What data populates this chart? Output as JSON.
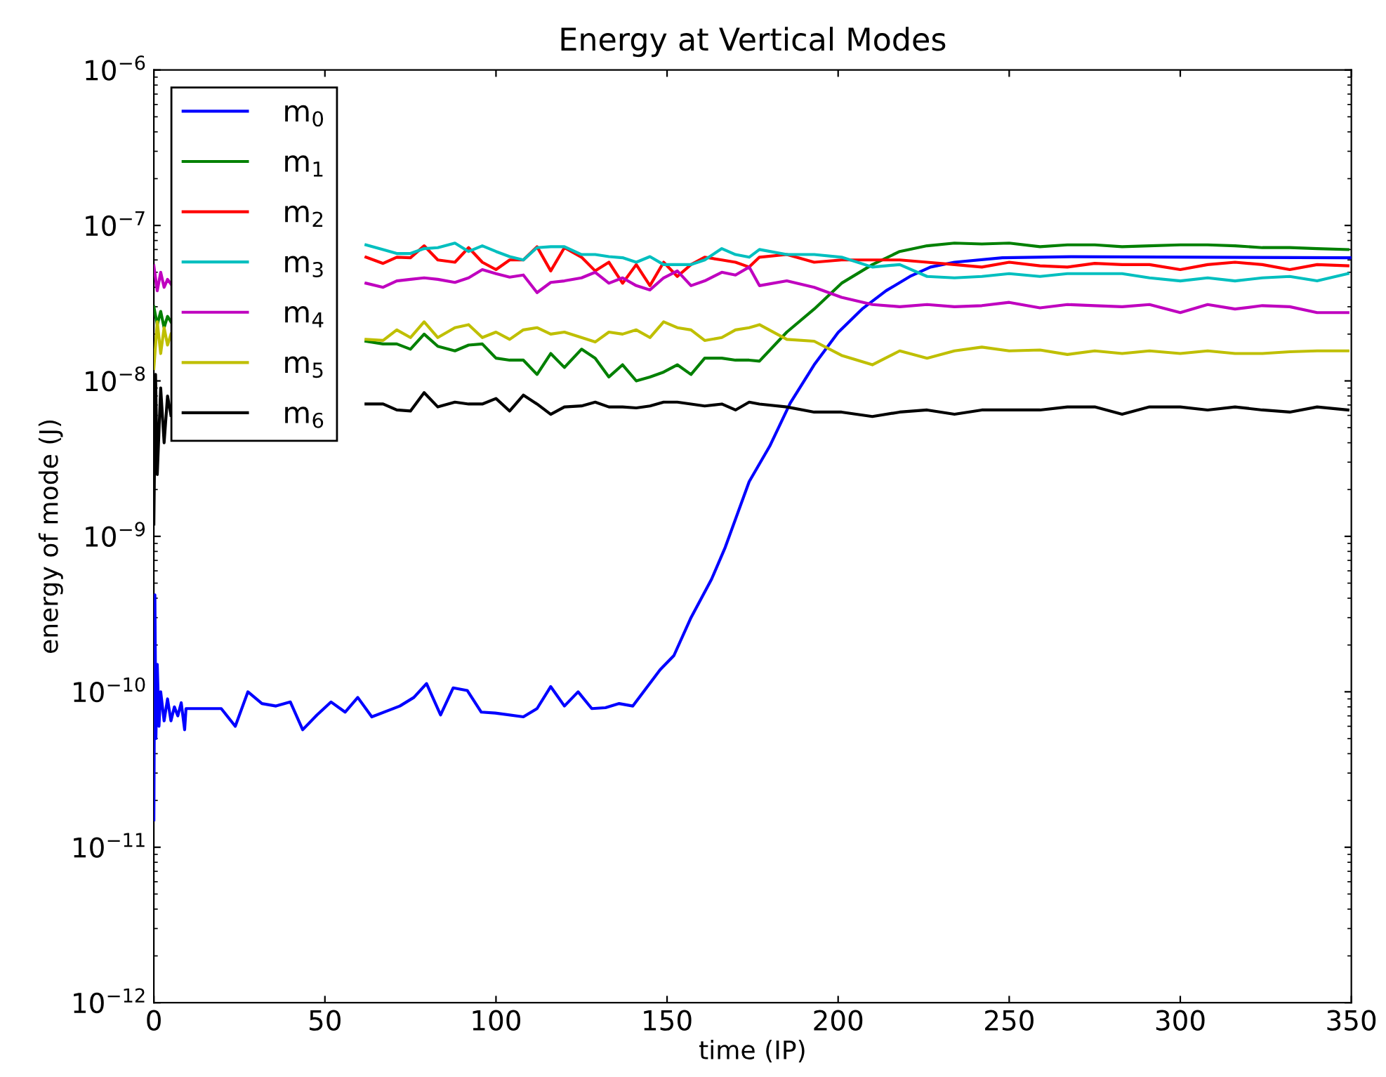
{
  "chart_data": {
    "type": "line",
    "title": "Energy at Vertical Modes",
    "xlabel": "time (IP)",
    "ylabel": "energy of mode (J)",
    "log": "y",
    "xlim": [
      0,
      350
    ],
    "xticks": [
      0,
      50,
      100,
      150,
      200,
      250,
      300,
      350
    ],
    "ylim": [
      1e-12,
      1e-06
    ],
    "yticks": [
      {
        "value": 1e-12,
        "label": "10$^{−12}$"
      },
      {
        "value": 1e-11,
        "label": "10$^{−11}$"
      },
      {
        "value": 1e-10,
        "label": "10$^{−10}$"
      },
      {
        "value": 1e-09,
        "label": "10$^{−9}$"
      },
      {
        "value": 1e-08,
        "label": "10$^{−8}$"
      },
      {
        "value": 1e-07,
        "label": "10$^{−7}$"
      },
      {
        "value": 1e-06,
        "label": "10$^{−6}$"
      }
    ],
    "grid": false,
    "legend": "top left",
    "marker": "none",
    "line_style": "solid",
    "series": [
      {
        "name": "m$_{0}$",
        "color": "#0000ff",
        "x": [
          0,
          0.3,
          0.6,
          1,
          1.5,
          2,
          3,
          4,
          5,
          6,
          7,
          8,
          9,
          9.4,
          19.7,
          23.8,
          27.5,
          31.6,
          35.7,
          39.9,
          43.5,
          47.7,
          51.8,
          55.9,
          59.6,
          63.7,
          71.9,
          76,
          79.7,
          83.8,
          87.5,
          91.6,
          95.7,
          99.8,
          108,
          112,
          116,
          120,
          124,
          128,
          132,
          136,
          140,
          148,
          152,
          157,
          163,
          167,
          174,
          180,
          186,
          193,
          200,
          207,
          214,
          221,
          227,
          234,
          248,
          268,
          348,
          350
        ],
        "values": [
          1.5e-11,
          4.2e-10,
          5e-11,
          1.5e-10,
          6e-11,
          1e-10,
          6.5e-11,
          9e-11,
          6.5e-11,
          8e-11,
          7e-11,
          8.5e-11,
          5.7e-11,
          7.8e-11,
          7.8e-11,
          6e-11,
          1e-10,
          8.4e-11,
          8.1e-11,
          8.6e-11,
          5.7e-11,
          7.1e-11,
          8.6e-11,
          7.4e-11,
          9.2e-11,
          6.9e-11,
          8.1e-11,
          9.2e-11,
          1.13e-10,
          7.1e-11,
          1.06e-10,
          1.02e-10,
          7.4e-11,
          7.3e-11,
          6.9e-11,
          7.8e-11,
          1.08e-10,
          8.1e-11,
          1e-10,
          7.8e-11,
          7.9e-11,
          8.4e-11,
          8.1e-11,
          1.39e-10,
          1.71e-10,
          3e-10,
          5.3e-10,
          8.5e-10,
          2.25e-09,
          3.8e-09,
          7.2e-09,
          1.27e-08,
          2.05e-08,
          2.9e-08,
          3.8e-08,
          4.7e-08,
          5.4e-08,
          5.8e-08,
          6.2e-08,
          6.3e-08,
          6.2e-08,
          6.2e-08
        ]
      },
      {
        "name": "m$_{1}$",
        "color": "#008000",
        "x": [
          0,
          1,
          2,
          3,
          4,
          5,
          30,
          62,
          67,
          71,
          75,
          79,
          83,
          88,
          92,
          96,
          100,
          104,
          108,
          112,
          116,
          120,
          125,
          129,
          133,
          137,
          141,
          145,
          149,
          153,
          157,
          161,
          166,
          170,
          174,
          177,
          185,
          193,
          201,
          210,
          218,
          226,
          234,
          242,
          250,
          259,
          267,
          275,
          283,
          291,
          300,
          308,
          316,
          324,
          332,
          340,
          349
        ],
        "values": [
          3e-08,
          2.3e-08,
          2.8e-08,
          2.2e-08,
          2.6e-08,
          2.4e-08,
          null,
          1.8e-08,
          1.73e-08,
          1.73e-08,
          1.6e-08,
          2e-08,
          1.67e-08,
          1.56e-08,
          1.7e-08,
          1.73e-08,
          1.4e-08,
          1.36e-08,
          1.36e-08,
          1.1e-08,
          1.5e-08,
          1.22e-08,
          1.6e-08,
          1.4e-08,
          1.06e-08,
          1.27e-08,
          1e-08,
          1.06e-08,
          1.14e-08,
          1.27e-08,
          1.1e-08,
          1.4e-08,
          1.4e-08,
          1.36e-08,
          1.36e-08,
          1.34e-08,
          2.06e-08,
          2.9e-08,
          4.25e-08,
          5.6e-08,
          6.8e-08,
          7.4e-08,
          7.7e-08,
          7.6e-08,
          7.7e-08,
          7.3e-08,
          7.5e-08,
          7.5e-08,
          7.3e-08,
          7.4e-08,
          7.5e-08,
          7.5e-08,
          7.4e-08,
          7.2e-08,
          7.2e-08,
          7.1e-08,
          7e-08
        ]
      },
      {
        "name": "m$_{2}$",
        "color": "#ff0000",
        "x": [
          62,
          67,
          71,
          75,
          79,
          83,
          88,
          92,
          96,
          100,
          104,
          108,
          112,
          116,
          120,
          125,
          129,
          133,
          137,
          141,
          145,
          149,
          153,
          157,
          161,
          166,
          170,
          174,
          177,
          185,
          193,
          201,
          210,
          218,
          226,
          234,
          242,
          250,
          259,
          267,
          275,
          283,
          291,
          300,
          308,
          316,
          324,
          332,
          340,
          349
        ],
        "values": [
          6.25e-08,
          5.7e-08,
          6.25e-08,
          6.2e-08,
          7.4e-08,
          6e-08,
          5.8e-08,
          7.2e-08,
          5.8e-08,
          5.2e-08,
          6e-08,
          6e-08,
          7.3e-08,
          5.1e-08,
          7.2e-08,
          6.25e-08,
          5.1e-08,
          5.8e-08,
          4.25e-08,
          5.6e-08,
          4.1e-08,
          5.8e-08,
          4.7e-08,
          5.6e-08,
          6.25e-08,
          6e-08,
          5.8e-08,
          5.4e-08,
          6.25e-08,
          6.5e-08,
          5.8e-08,
          6e-08,
          6e-08,
          6e-08,
          5.8e-08,
          5.6e-08,
          5.4e-08,
          5.8e-08,
          5.5e-08,
          5.4e-08,
          5.7e-08,
          5.6e-08,
          5.6e-08,
          5.2e-08,
          5.6e-08,
          5.8e-08,
          5.6e-08,
          5.2e-08,
          5.6e-08,
          5.5e-08
        ]
      },
      {
        "name": "m$_{3}$",
        "color": "#00bfbf",
        "x": [
          62,
          67,
          71,
          75,
          79,
          83,
          88,
          92,
          96,
          100,
          104,
          108,
          112,
          116,
          120,
          125,
          129,
          133,
          137,
          141,
          145,
          149,
          153,
          157,
          161,
          166,
          170,
          174,
          177,
          185,
          193,
          201,
          210,
          218,
          226,
          234,
          242,
          250,
          259,
          267,
          275,
          283,
          291,
          300,
          308,
          316,
          324,
          332,
          340,
          349
        ],
        "values": [
          7.5e-08,
          7e-08,
          6.6e-08,
          6.6e-08,
          7.1e-08,
          7.2e-08,
          7.7e-08,
          6.8e-08,
          7.4e-08,
          6.8e-08,
          6.3e-08,
          6e-08,
          7.2e-08,
          7.3e-08,
          7.3e-08,
          6.5e-08,
          6.5e-08,
          6.3e-08,
          6.2e-08,
          5.8e-08,
          6.3e-08,
          5.6e-08,
          5.6e-08,
          5.6e-08,
          6e-08,
          7.1e-08,
          6.5e-08,
          6.25e-08,
          7e-08,
          6.5e-08,
          6.5e-08,
          6.25e-08,
          5.4e-08,
          5.6e-08,
          4.7e-08,
          4.6e-08,
          4.7e-08,
          4.9e-08,
          4.7e-08,
          4.9e-08,
          4.9e-08,
          4.9e-08,
          4.6e-08,
          4.4e-08,
          4.6e-08,
          4.4e-08,
          4.6e-08,
          4.7e-08,
          4.4e-08,
          4.9e-08
        ]
      },
      {
        "name": "m$_{4}$",
        "color": "#bf00bf",
        "x": [
          0,
          1,
          2,
          3,
          4,
          5,
          30,
          62,
          67,
          71,
          75,
          79,
          83,
          88,
          92,
          96,
          100,
          104,
          108,
          112,
          116,
          120,
          125,
          129,
          133,
          137,
          141,
          145,
          149,
          153,
          157,
          161,
          166,
          170,
          174,
          177,
          185,
          193,
          201,
          210,
          218,
          226,
          234,
          242,
          250,
          259,
          267,
          275,
          283,
          291,
          300,
          308,
          316,
          324,
          332,
          340,
          349
        ],
        "values": [
          5.5e-08,
          3.8e-08,
          5e-08,
          4e-08,
          4.5e-08,
          4.2e-08,
          null,
          4.25e-08,
          4e-08,
          4.4e-08,
          4.5e-08,
          4.6e-08,
          4.5e-08,
          4.3e-08,
          4.6e-08,
          5.2e-08,
          4.9e-08,
          4.65e-08,
          4.8e-08,
          3.7e-08,
          4.3e-08,
          4.4e-08,
          4.6e-08,
          5e-08,
          4.25e-08,
          4.6e-08,
          4.1e-08,
          3.85e-08,
          4.6e-08,
          5.1e-08,
          4.1e-08,
          4.4e-08,
          5e-08,
          4.8e-08,
          5.4e-08,
          4.1e-08,
          4.4e-08,
          4e-08,
          3.45e-08,
          3.1e-08,
          3e-08,
          3.1e-08,
          3e-08,
          3.05e-08,
          3.2e-08,
          2.95e-08,
          3.1e-08,
          3.05e-08,
          3e-08,
          3.1e-08,
          2.75e-08,
          3.1e-08,
          2.9e-08,
          3.05e-08,
          3e-08,
          2.75e-08,
          2.75e-08
        ]
      },
      {
        "name": "m$_{5}$",
        "color": "#bfbf00",
        "x": [
          0,
          1,
          2,
          3,
          4,
          5,
          30,
          62,
          67,
          71,
          75,
          79,
          83,
          88,
          92,
          96,
          100,
          104,
          108,
          112,
          116,
          120,
          125,
          129,
          133,
          137,
          141,
          145,
          149,
          153,
          157,
          161,
          166,
          170,
          174,
          177,
          185,
          193,
          201,
          210,
          218,
          226,
          234,
          242,
          250,
          259,
          267,
          275,
          283,
          291,
          300,
          308,
          316,
          324,
          332,
          340,
          349
        ],
        "values": [
          1.2e-08,
          2.4e-08,
          1.5e-08,
          2.2e-08,
          1.7e-08,
          2e-08,
          null,
          1.85e-08,
          1.82e-08,
          2.13e-08,
          1.9e-08,
          2.4e-08,
          1.9e-08,
          2.2e-08,
          2.3e-08,
          1.9e-08,
          2.06e-08,
          1.85e-08,
          2.13e-08,
          2.2e-08,
          2e-08,
          2.06e-08,
          1.9e-08,
          1.78e-08,
          2.06e-08,
          2e-08,
          2.13e-08,
          1.9e-08,
          2.4e-08,
          2.2e-08,
          2.13e-08,
          1.82e-08,
          1.9e-08,
          2.13e-08,
          2.2e-08,
          2.3e-08,
          1.85e-08,
          1.8e-08,
          1.46e-08,
          1.27e-08,
          1.56e-08,
          1.4e-08,
          1.56e-08,
          1.65e-08,
          1.56e-08,
          1.58e-08,
          1.48e-08,
          1.56e-08,
          1.5e-08,
          1.56e-08,
          1.5e-08,
          1.56e-08,
          1.5e-08,
          1.5e-08,
          1.54e-08,
          1.56e-08,
          1.56e-08
        ]
      },
      {
        "name": "m$_{6}$",
        "color": "#000000",
        "x": [
          0,
          0.5,
          1,
          2,
          3,
          4,
          5,
          30,
          62,
          67,
          71,
          75,
          79,
          83,
          88,
          92,
          96,
          100,
          104,
          108,
          112,
          116,
          120,
          125,
          129,
          133,
          137,
          141,
          145,
          149,
          153,
          157,
          161,
          166,
          170,
          174,
          177,
          185,
          193,
          201,
          210,
          218,
          226,
          234,
          242,
          250,
          259,
          267,
          275,
          283,
          291,
          300,
          308,
          316,
          324,
          332,
          340,
          349
        ],
        "values": [
          1.2e-09,
          1.1e-08,
          2.5e-09,
          9e-09,
          4e-09,
          8e-09,
          6e-09,
          null,
          7.1e-09,
          7.1e-09,
          6.5e-09,
          6.4e-09,
          8.4e-09,
          6.8e-09,
          7.3e-09,
          7.1e-09,
          7.1e-09,
          7.7e-09,
          6.4e-09,
          8.1e-09,
          7.1e-09,
          6.1e-09,
          6.8e-09,
          6.9e-09,
          7.3e-09,
          6.8e-09,
          6.8e-09,
          6.7e-09,
          6.9e-09,
          7.3e-09,
          7.3e-09,
          7.1e-09,
          6.9e-09,
          7.1e-09,
          6.5e-09,
          7.3e-09,
          7.1e-09,
          6.8e-09,
          6.3e-09,
          6.3e-09,
          5.9e-09,
          6.3e-09,
          6.5e-09,
          6.1e-09,
          6.5e-09,
          6.5e-09,
          6.5e-09,
          6.8e-09,
          6.8e-09,
          6.1e-09,
          6.8e-09,
          6.8e-09,
          6.5e-09,
          6.8e-09,
          6.5e-09,
          6.3e-09,
          6.8e-09,
          6.5e-09
        ]
      }
    ]
  }
}
